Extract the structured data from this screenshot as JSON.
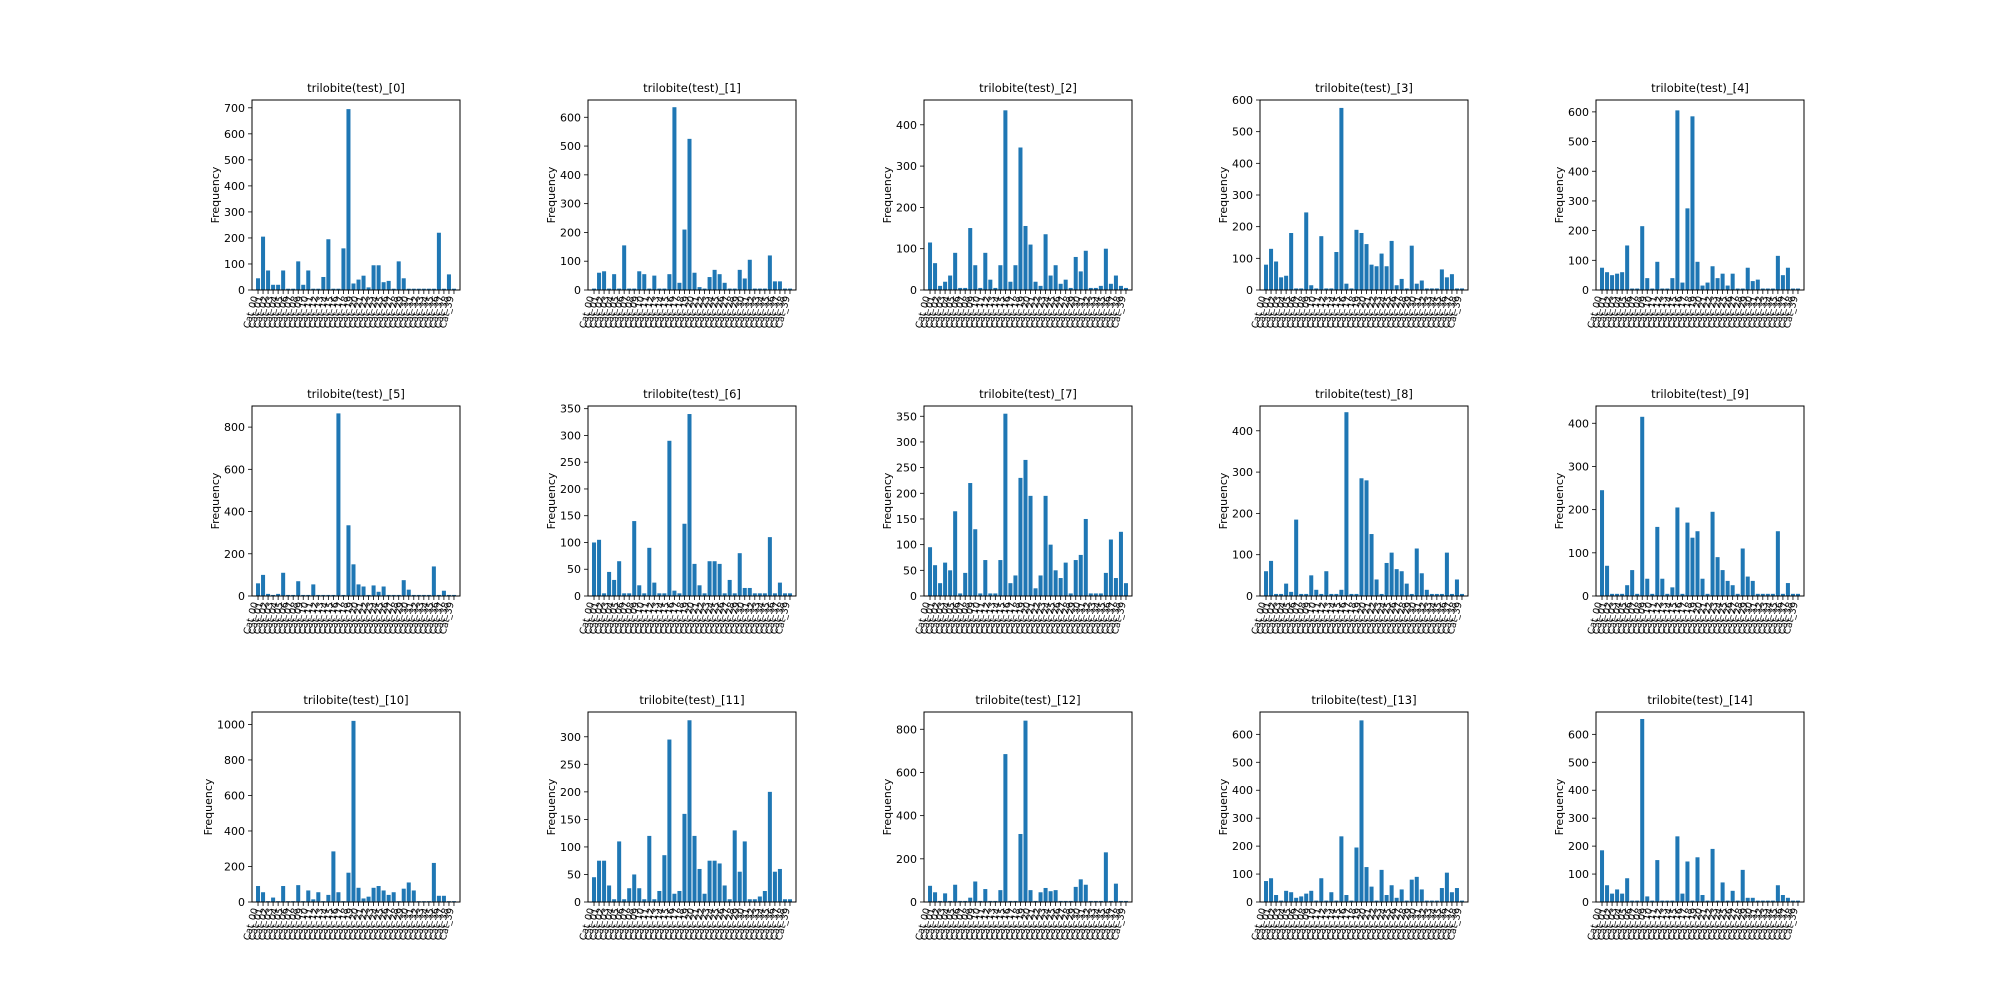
{
  "figure": {
    "background": "#ffffff",
    "bar_color": "#1f77b4"
  },
  "chart_data": [
    {
      "type": "bar",
      "title": "trilobite(test)_[0]",
      "ylabel": "Frequency",
      "ylim": [
        0,
        730
      ],
      "yticks": [
        0,
        100,
        200,
        300,
        400,
        500,
        600,
        700
      ],
      "values": [
        45,
        205,
        75,
        20,
        20,
        75,
        5,
        5,
        110,
        20,
        75,
        5,
        5,
        50,
        195,
        5,
        5,
        160,
        695,
        25,
        40,
        55,
        10,
        95,
        95,
        30,
        35,
        5,
        110,
        45,
        5,
        5,
        5,
        5,
        5,
        5,
        220,
        5,
        60,
        5
      ]
    },
    {
      "type": "bar",
      "title": "trilobite(test)_[1]",
      "ylabel": "Frequency",
      "ylim": [
        0,
        660
      ],
      "yticks": [
        0,
        100,
        200,
        300,
        400,
        500,
        600
      ],
      "values": [
        5,
        60,
        65,
        5,
        55,
        5,
        155,
        5,
        5,
        65,
        55,
        5,
        50,
        5,
        5,
        55,
        635,
        25,
        210,
        525,
        60,
        10,
        5,
        45,
        70,
        55,
        25,
        5,
        5,
        70,
        40,
        105,
        5,
        5,
        5,
        120,
        30,
        30,
        5,
        5
      ]
    },
    {
      "type": "bar",
      "title": "trilobite(test)_[2]",
      "ylabel": "Frequency",
      "ylim": [
        0,
        460
      ],
      "yticks": [
        0,
        100,
        200,
        300,
        400
      ],
      "values": [
        115,
        65,
        10,
        20,
        35,
        90,
        5,
        5,
        150,
        60,
        5,
        90,
        25,
        5,
        60,
        435,
        20,
        60,
        345,
        155,
        110,
        20,
        10,
        135,
        35,
        60,
        15,
        25,
        5,
        80,
        45,
        95,
        5,
        5,
        10,
        100,
        15,
        35,
        10,
        5
      ]
    },
    {
      "type": "bar",
      "title": "trilobite(test)_[3]",
      "ylabel": "Frequency",
      "ylim": [
        0,
        600
      ],
      "yticks": [
        0,
        100,
        200,
        300,
        400,
        500,
        600
      ],
      "values": [
        80,
        130,
        90,
        40,
        45,
        180,
        5,
        5,
        245,
        15,
        5,
        170,
        5,
        5,
        120,
        575,
        20,
        5,
        190,
        180,
        145,
        80,
        75,
        115,
        75,
        155,
        15,
        35,
        5,
        140,
        20,
        30,
        5,
        5,
        5,
        65,
        40,
        50,
        5,
        5
      ]
    },
    {
      "type": "bar",
      "title": "trilobite(test)_[4]",
      "ylabel": "Frequency",
      "ylim": [
        0,
        640
      ],
      "yticks": [
        0,
        100,
        200,
        300,
        400,
        500,
        600
      ],
      "values": [
        75,
        60,
        50,
        55,
        60,
        150,
        5,
        5,
        215,
        40,
        5,
        95,
        5,
        5,
        40,
        605,
        25,
        275,
        585,
        95,
        15,
        25,
        80,
        40,
        55,
        15,
        55,
        5,
        5,
        75,
        30,
        35,
        5,
        5,
        5,
        115,
        50,
        75,
        5,
        5
      ]
    },
    {
      "type": "bar",
      "title": "trilobite(test)_[5]",
      "ylabel": "Frequency",
      "ylim": [
        0,
        900
      ],
      "yticks": [
        0,
        200,
        400,
        600,
        800
      ],
      "values": [
        60,
        100,
        10,
        5,
        10,
        110,
        5,
        5,
        70,
        5,
        5,
        55,
        5,
        5,
        5,
        5,
        865,
        5,
        335,
        150,
        55,
        45,
        5,
        50,
        20,
        45,
        5,
        5,
        5,
        75,
        30,
        5,
        5,
        5,
        5,
        140,
        5,
        25,
        5,
        5
      ]
    },
    {
      "type": "bar",
      "title": "trilobite(test)_[6]",
      "ylabel": "Frequency",
      "ylim": [
        0,
        355
      ],
      "yticks": [
        0,
        50,
        100,
        150,
        200,
        250,
        300,
        350
      ],
      "values": [
        100,
        105,
        5,
        45,
        30,
        65,
        5,
        5,
        140,
        20,
        5,
        90,
        25,
        5,
        5,
        290,
        10,
        5,
        135,
        340,
        60,
        20,
        5,
        65,
        65,
        60,
        5,
        30,
        5,
        80,
        15,
        15,
        5,
        5,
        5,
        110,
        5,
        25,
        5,
        5
      ]
    },
    {
      "type": "bar",
      "title": "trilobite(test)_[7]",
      "ylabel": "Frequency",
      "ylim": [
        0,
        370
      ],
      "yticks": [
        0,
        50,
        100,
        150,
        200,
        250,
        300,
        350
      ],
      "values": [
        95,
        60,
        25,
        65,
        50,
        165,
        5,
        45,
        220,
        130,
        5,
        70,
        5,
        5,
        70,
        355,
        25,
        40,
        230,
        265,
        195,
        15,
        40,
        195,
        100,
        50,
        35,
        65,
        5,
        70,
        80,
        150,
        5,
        5,
        5,
        45,
        110,
        35,
        125,
        25
      ]
    },
    {
      "type": "bar",
      "title": "trilobite(test)_[8]",
      "ylabel": "Frequency",
      "ylim": [
        0,
        460
      ],
      "yticks": [
        0,
        100,
        200,
        300,
        400
      ],
      "values": [
        60,
        85,
        5,
        5,
        30,
        10,
        185,
        5,
        5,
        50,
        15,
        5,
        60,
        5,
        5,
        15,
        445,
        5,
        5,
        285,
        280,
        150,
        40,
        5,
        80,
        105,
        65,
        60,
        30,
        5,
        115,
        55,
        15,
        5,
        5,
        5,
        105,
        5,
        40,
        5
      ]
    },
    {
      "type": "bar",
      "title": "trilobite(test)_[9]",
      "ylabel": "Frequency",
      "ylim": [
        0,
        440
      ],
      "yticks": [
        0,
        100,
        200,
        300,
        400
      ],
      "values": [
        245,
        70,
        5,
        5,
        5,
        25,
        60,
        5,
        415,
        40,
        5,
        160,
        40,
        5,
        20,
        205,
        5,
        170,
        135,
        150,
        40,
        5,
        195,
        90,
        60,
        35,
        25,
        5,
        110,
        45,
        35,
        5,
        5,
        5,
        5,
        150,
        5,
        30,
        5,
        5
      ]
    },
    {
      "type": "bar",
      "title": "trilobite(test)_[10]",
      "ylabel": "Frequency",
      "ylim": [
        0,
        1070
      ],
      "yticks": [
        0,
        200,
        400,
        600,
        800,
        1000
      ],
      "values": [
        90,
        55,
        5,
        25,
        5,
        90,
        5,
        5,
        95,
        5,
        65,
        15,
        55,
        5,
        40,
        285,
        55,
        5,
        165,
        1020,
        80,
        20,
        30,
        80,
        90,
        65,
        40,
        55,
        5,
        75,
        110,
        65,
        5,
        5,
        5,
        220,
        35,
        35,
        5,
        5
      ]
    },
    {
      "type": "bar",
      "title": "trilobite(test)_[11]",
      "ylabel": "Frequency",
      "ylim": [
        0,
        345
      ],
      "yticks": [
        0,
        50,
        100,
        150,
        200,
        250,
        300
      ],
      "values": [
        45,
        75,
        75,
        30,
        5,
        110,
        5,
        25,
        50,
        25,
        5,
        120,
        5,
        20,
        85,
        295,
        15,
        20,
        160,
        330,
        120,
        60,
        15,
        75,
        75,
        70,
        30,
        5,
        130,
        55,
        110,
        5,
        5,
        10,
        20,
        200,
        55,
        60,
        5,
        5
      ]
    },
    {
      "type": "bar",
      "title": "trilobite(test)_[12]",
      "ylabel": "Frequency",
      "ylim": [
        0,
        880
      ],
      "yticks": [
        0,
        200,
        400,
        600,
        800
      ],
      "values": [
        75,
        45,
        5,
        40,
        5,
        80,
        5,
        5,
        20,
        95,
        5,
        60,
        5,
        5,
        55,
        685,
        5,
        5,
        315,
        840,
        55,
        5,
        45,
        65,
        50,
        55,
        5,
        5,
        5,
        70,
        105,
        80,
        5,
        5,
        5,
        230,
        5,
        85,
        5,
        5
      ]
    },
    {
      "type": "bar",
      "title": "trilobite(test)_[13]",
      "ylabel": "Frequency",
      "ylim": [
        0,
        680
      ],
      "yticks": [
        0,
        100,
        200,
        300,
        400,
        500,
        600
      ],
      "values": [
        75,
        85,
        25,
        5,
        40,
        35,
        15,
        20,
        30,
        40,
        5,
        85,
        5,
        35,
        5,
        235,
        25,
        5,
        195,
        650,
        125,
        55,
        5,
        115,
        25,
        60,
        15,
        45,
        5,
        80,
        90,
        45,
        5,
        5,
        5,
        50,
        105,
        35,
        50,
        5
      ]
    },
    {
      "type": "bar",
      "title": "trilobite(test)_[14]",
      "ylabel": "Frequency",
      "ylim": [
        0,
        680
      ],
      "yticks": [
        0,
        100,
        200,
        300,
        400,
        500,
        600
      ],
      "values": [
        185,
        60,
        30,
        45,
        30,
        85,
        5,
        5,
        655,
        20,
        5,
        150,
        5,
        5,
        5,
        235,
        30,
        145,
        5,
        160,
        25,
        5,
        190,
        5,
        70,
        5,
        40,
        5,
        115,
        15,
        15,
        5,
        5,
        5,
        5,
        60,
        25,
        15,
        5,
        5
      ]
    }
  ],
  "x_categories": [
    "Cat_00",
    "Cat_01",
    "Cat_02",
    "Cat_03",
    "Cat_04",
    "Cat_05",
    "Cat_06",
    "Cat_07",
    "Cat_08",
    "Cat_09",
    "Cat_10",
    "Cat_11",
    "Cat_12",
    "Cat_13",
    "Cat_14",
    "Cat_15",
    "Cat_16",
    "Cat_17",
    "Cat_18",
    "Cat_19",
    "Cat_20",
    "Cat_21",
    "Cat_22",
    "Cat_23",
    "Cat_24",
    "Cat_25",
    "Cat_26",
    "Cat_27",
    "Cat_28",
    "Cat_29",
    "Cat_30",
    "Cat_31",
    "Cat_32",
    "Cat_33",
    "Cat_34",
    "Cat_35",
    "Cat_36",
    "Cat_37",
    "Cat_38",
    "Cat_39"
  ]
}
